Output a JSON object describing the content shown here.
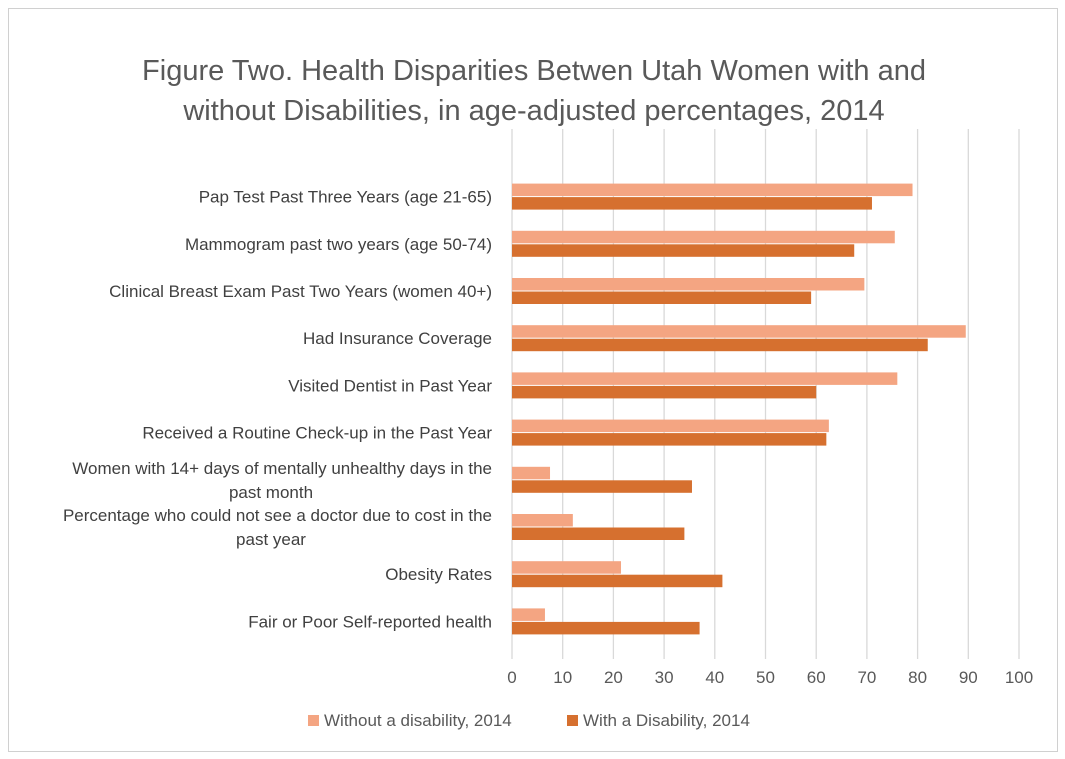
{
  "title_lines": [
    "Figure Two. Health Disparities Betwen Utah Women with and",
    "without Disabilities, in age-adjusted percentages, 2014"
  ],
  "colors": {
    "without": "#F4A582",
    "with": "#D6702F",
    "grid": "#D9D9D9",
    "border": "#D0D0D0"
  },
  "chart_data": {
    "type": "bar",
    "orientation": "horizontal",
    "title": "Figure Two. Health Disparities Betwen Utah Women with and without Disabilities, in age-adjusted percentages, 2014",
    "categories": [
      [
        "Pap Test Past Three Years (age 21-65)"
      ],
      [
        "Mammogram past two years (age 50-74)"
      ],
      [
        "Clinical Breast Exam Past Two Years (women 40+)"
      ],
      [
        "Had Insurance Coverage"
      ],
      [
        "Visited Dentist in Past Year"
      ],
      [
        "Received a Routine Check-up in the Past Year"
      ],
      [
        "Women with 14+ days of mentally unhealthy days in the",
        "past month"
      ],
      [
        "Percentage who could not see a doctor due to cost in the",
        "past year"
      ],
      [
        "Obesity Rates"
      ],
      [
        "Fair or Poor Self-reported health"
      ]
    ],
    "series": [
      {
        "name": "Without a disability, 2014",
        "values": [
          79,
          75.5,
          69.5,
          89.5,
          76,
          62.5,
          7.5,
          12,
          21.5,
          6.5
        ]
      },
      {
        "name": "With a Disability, 2014",
        "values": [
          71,
          67.5,
          59,
          82,
          60,
          62,
          35.5,
          34,
          41.5,
          37
        ]
      }
    ],
    "xlim": [
      0,
      100
    ],
    "xticks": [
      0,
      10,
      20,
      30,
      40,
      50,
      60,
      70,
      80,
      90,
      100
    ],
    "grid": "vertical",
    "legend": "bottom"
  }
}
